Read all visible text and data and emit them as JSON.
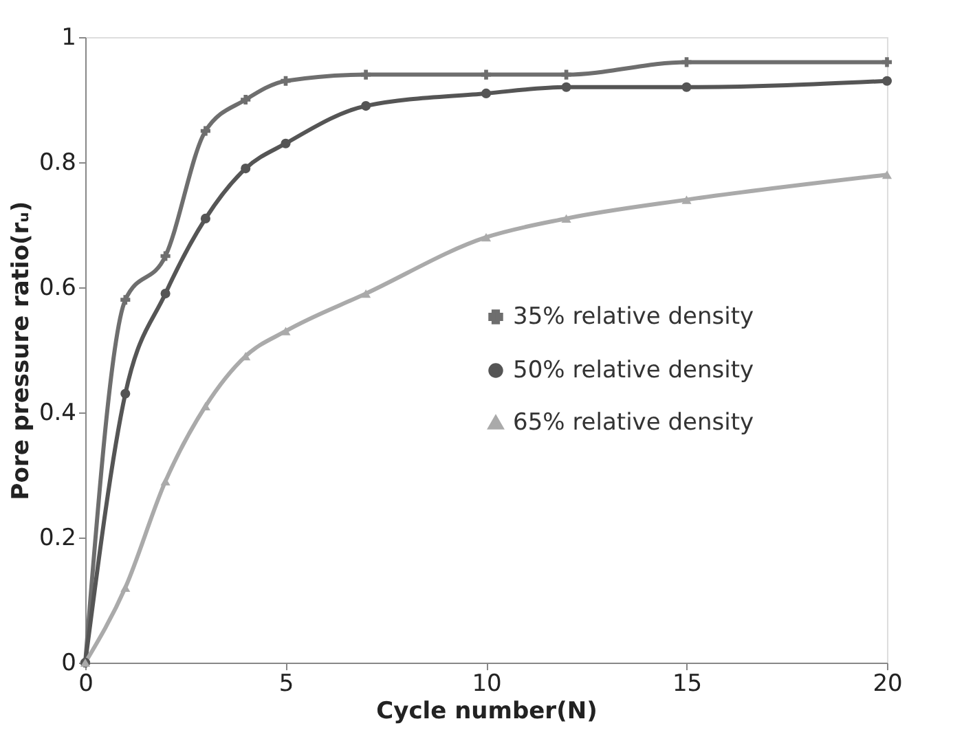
{
  "chart_data": {
    "type": "line",
    "xlabel": "Cycle number(N)",
    "ylabel": "Pore pressure ratio(rᵤ)",
    "x": [
      0,
      1,
      2,
      3,
      4,
      5,
      7,
      10,
      12,
      15,
      20
    ],
    "series": [
      {
        "name": "35% relative density",
        "color": "#6e6e6e",
        "marker": "cross",
        "values": [
          0,
          0.58,
          0.65,
          0.85,
          0.9,
          0.93,
          0.94,
          0.94,
          0.94,
          0.96,
          0.96
        ]
      },
      {
        "name": "50% relative density",
        "color": "#555555",
        "marker": "circle",
        "values": [
          0,
          0.43,
          0.59,
          0.71,
          0.79,
          0.83,
          0.89,
          0.91,
          0.92,
          0.92,
          0.93
        ]
      },
      {
        "name": "65% relative density",
        "color": "#aaaaaa",
        "marker": "triangle",
        "values": [
          0,
          0.12,
          0.29,
          0.41,
          0.49,
          0.53,
          0.59,
          0.68,
          0.71,
          0.74,
          0.78
        ]
      }
    ],
    "xlim": [
      0,
      20
    ],
    "xticks": [
      0,
      5,
      10,
      15,
      20
    ],
    "ylim": [
      0,
      1
    ],
    "yticks": [
      0,
      0.2,
      0.4,
      0.6,
      0.8,
      1
    ],
    "grid": false,
    "legend": "right",
    "line_style": "solid"
  }
}
